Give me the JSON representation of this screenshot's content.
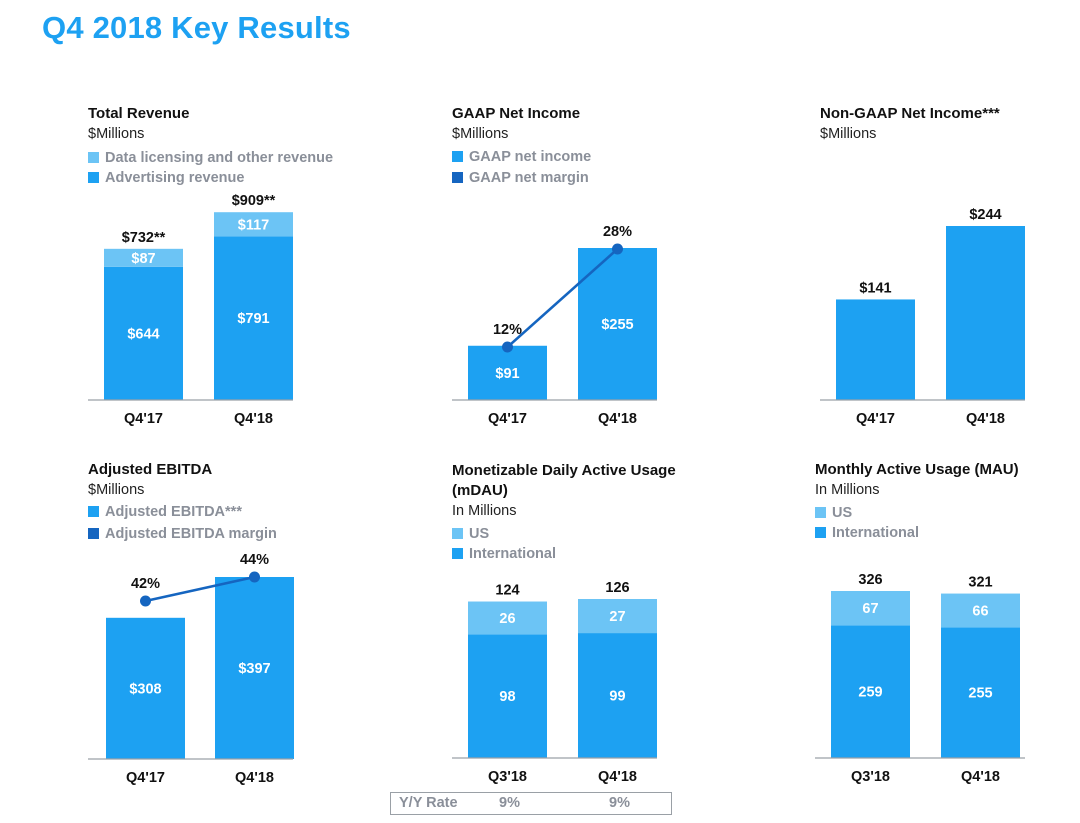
{
  "page": {
    "title": "Q4 2018 Key Results"
  },
  "colors": {
    "light": "#6cc4f5",
    "main": "#1da1f2",
    "line": "#1565c0",
    "axis": "#9aa0a6"
  },
  "panels": {
    "total_revenue": {
      "title": "Total Revenue",
      "unit": "$Millions",
      "legend": [
        "Data licensing and other revenue",
        "Advertising revenue"
      ]
    },
    "gaap_net_income": {
      "title": "GAAP Net Income",
      "unit": "$Millions",
      "legend": [
        "GAAP net income",
        "GAAP net margin"
      ]
    },
    "non_gaap_net_income": {
      "title": "Non-GAAP Net Income***",
      "unit": "$Millions"
    },
    "adjusted_ebitda": {
      "title": "Adjusted EBITDA",
      "unit": "$Millions",
      "legend": [
        "Adjusted EBITDA***",
        "Adjusted EBITDA margin"
      ]
    },
    "mdau": {
      "title": "Monetizable Daily Active Usage (mDAU)",
      "unit": "In Millions",
      "legend": [
        "US",
        "International"
      ]
    },
    "mau": {
      "title": "Monthly Active Usage (MAU)",
      "unit": "In Millions",
      "legend": [
        "US",
        "International"
      ]
    }
  },
  "yoy": {
    "label": "Y/Y Rate",
    "values": [
      "9%",
      "9%"
    ]
  },
  "chart_data": [
    {
      "id": "total_revenue",
      "type": "bar",
      "stacked": true,
      "title": "Total Revenue",
      "ylabel": "$Millions",
      "categories": [
        "Q4'17",
        "Q4'18"
      ],
      "series": [
        {
          "name": "Advertising revenue",
          "values": [
            644,
            791
          ],
          "labels": [
            "$644",
            "$791"
          ],
          "color": "main"
        },
        {
          "name": "Data licensing and other revenue",
          "values": [
            87,
            117
          ],
          "labels": [
            "$87",
            "$117"
          ],
          "color": "light"
        }
      ],
      "totals": [
        "$732**",
        "$909**"
      ],
      "ylim": [
        0,
        909
      ]
    },
    {
      "id": "gaap_net_income",
      "type": "bar",
      "title": "GAAP Net Income",
      "ylabel": "$Millions",
      "categories": [
        "Q4'17",
        "Q4'18"
      ],
      "series": [
        {
          "name": "GAAP net income",
          "values": [
            91,
            255
          ],
          "labels": [
            "$91",
            "$255"
          ],
          "color": "main"
        }
      ],
      "line": {
        "name": "GAAP net margin",
        "values": [
          12,
          28
        ],
        "labels": [
          "12%",
          "28%"
        ],
        "unit": "%"
      },
      "ylim": [
        0,
        255
      ]
    },
    {
      "id": "non_gaap_net_income",
      "type": "bar",
      "title": "Non-GAAP Net Income***",
      "ylabel": "$Millions",
      "categories": [
        "Q4'17",
        "Q4'18"
      ],
      "series": [
        {
          "name": "Non-GAAP net income",
          "values": [
            141,
            244
          ],
          "labels": [
            "",
            ""
          ],
          "color": "main"
        }
      ],
      "totals": [
        "$141",
        "$244"
      ],
      "ylim": [
        0,
        244
      ]
    },
    {
      "id": "adjusted_ebitda",
      "type": "bar",
      "title": "Adjusted EBITDA",
      "ylabel": "$Millions",
      "categories": [
        "Q4'17",
        "Q4'18"
      ],
      "series": [
        {
          "name": "Adjusted EBITDA***",
          "values": [
            308,
            397
          ],
          "labels": [
            "$308",
            "$397"
          ],
          "color": "main"
        }
      ],
      "line": {
        "name": "Adjusted EBITDA margin",
        "values": [
          42,
          44
        ],
        "labels": [
          "42%",
          "44%"
        ],
        "unit": "%"
      },
      "ylim": [
        0,
        397
      ]
    },
    {
      "id": "mdau",
      "type": "bar",
      "stacked": true,
      "title": "Monetizable Daily Active Usage (mDAU)",
      "ylabel": "In Millions",
      "categories": [
        "Q3'18",
        "Q4'18"
      ],
      "series": [
        {
          "name": "International",
          "values": [
            98,
            99
          ],
          "labels": [
            "98",
            "99"
          ],
          "color": "main"
        },
        {
          "name": "US",
          "values": [
            26,
            27
          ],
          "labels": [
            "26",
            "27"
          ],
          "color": "light"
        }
      ],
      "totals": [
        "124",
        "126"
      ],
      "ylim": [
        0,
        168
      ]
    },
    {
      "id": "mau",
      "type": "bar",
      "stacked": true,
      "title": "Monthly Active Usage (MAU)",
      "ylabel": "In Millions",
      "categories": [
        "Q3'18",
        "Q4'18"
      ],
      "series": [
        {
          "name": "International",
          "values": [
            259,
            255
          ],
          "labels": [
            "259",
            "255"
          ],
          "color": "main"
        },
        {
          "name": "US",
          "values": [
            67,
            66
          ],
          "labels": [
            "67",
            "66"
          ],
          "color": "light"
        }
      ],
      "totals": [
        "326",
        "321"
      ],
      "ylim": [
        0,
        326
      ]
    }
  ]
}
